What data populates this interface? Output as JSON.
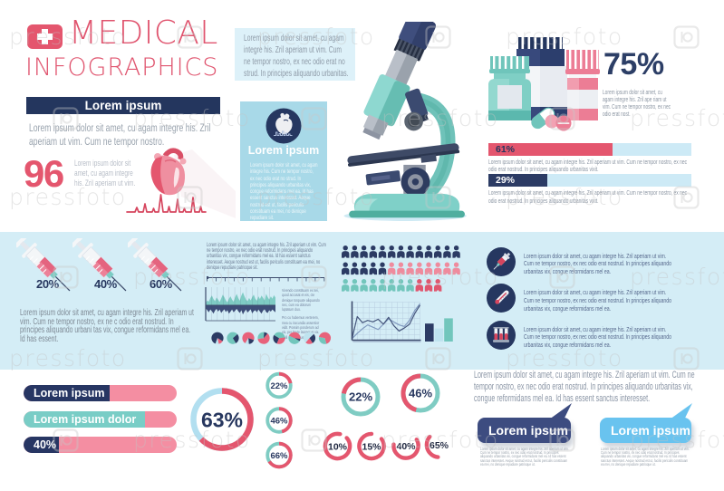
{
  "header": {
    "title_line1": "MEDICAL",
    "title_line2": "INFOGRAPHICS",
    "cross_icon": "medical-cross-icon"
  },
  "top_note": "Lorem ipsum dolor sit amet, cu agam integre his. Zril aperiam ut vim. Cum ne tempor nostro, ex nec odio erat no strud. In principes aliquando urbanitas.",
  "left_panel": {
    "banner_label": "Lorem ipsum",
    "intro": "Lorem ipsum dolor sit amet, cu agam integre his. Zril aperiam ut vim. Cum ne tempor nostro.",
    "stat_value": "96",
    "stat_note": "Lorem ipsum dolor sit amet, cu agam integre his. Zril aperiam ut vim."
  },
  "heart_card": {
    "title": "Lorem ipsum",
    "body": "Lorem ipsum dolor sit amet, cu agam integre his. Cum ne tempor nostro, ex nec odio erat no strud. In principes aliquando urbanitas vix, congue reformidans mel ea. Id has essent sanctus interesset. Aeque nostrud est ut, facilis periculis constituam ea mei, no denique repudiare sit."
  },
  "medicine_stat": {
    "value": "75%",
    "note": "Lorem ipsum dolor sit amet, cu agam integre his. Zril ape riam ut vim. Cum ne tempor nostro, ex nec odio erat nost."
  },
  "syringe_section": {
    "note": "Lorem ipsum dolor sit amet, cu agam integre his. Zril aperiam ut vim. Cum ne tempor nostro, ex ne c odio erat nostrud. In principes aliquando urbani tas vix, congue reformidans mel ea. Id has essent."
  },
  "mid_note": "Lorem ipsum dolor sit amet, cu agam integre his. Zril aperiam ut vim. Cum ne tempor nostro, ex nec odio erat nostrud. In principes aliquando urbanitas vix, congue reformidans mel ea. Id has essent sanctus interesset. Aeque nostrud est ut, facilis periculis constituam ea mei, no denique repudiare patrioque sit.",
  "tiny_caption_1": "Vivendo constituam ex sei, quod accusat et eis, cte denique torquate aliquando nec, cum ea dolorum luptatum duo.",
  "tiny_caption_2": "Pro cu habemus verterem, mea cu iracundia assentior vidit. Possim ponderum ad vix, per brute laoreet et vix. Falli saperet ius ad.",
  "icon_rows": [
    {
      "icon": "syringe-icon",
      "text": "Lorem ipsum dolor sit amet, cu agam integre his. Zril aperiam ut vim. Cum ne tempor nostro, ex nec odio erat nostrud. In principes aliquando urbanitas vix, congue reformidans mel ea."
    },
    {
      "icon": "thermometer-icon",
      "text": "Lorem ipsum dolor sit amet, cu agam integre his. Zril aperiam ut vim. Cum ne tempor nostro, ex nec odio erat nostrud. In principes aliquando urbanitas vix, congue reformidans mel ea."
    },
    {
      "icon": "test-tubes-icon",
      "text": "Lorem ipsum dolor sit amet, cu agam integre his. Zril aperiam ut vim. Cum ne tempor nostro, ex nec odio erat nostrud. In principes aliquando urbanitas vix, congue reformidans mel ea."
    }
  ],
  "bottom_note": "Lorem ipsum dolor sit amet, cu agam integre his. Zril aperiam ut vim. Cum ne tempor nostro, ex nec odio erat nostrud. In principes aliquando urbanitas vix, congue reformidans mel ea. Id has essent sanctus interesset.",
  "speech_bubbles": [
    {
      "label": "Lorem ipsum",
      "color": "#3d4c80",
      "note": "Lorem ipsum dolor sit amet, cu agam integre his. Zril aperiam ut vim. Cum ne tempor nostro, ex nec odio erat nostrud. In principes aliquando urbanitas vix, congue reformidans mel ea. Id has essent sanctus interesset. Aeque nostrud est ut, facilis periculis constituam ea mei, no denique repudiare patrioque ut."
    },
    {
      "label": "Lorem ipsum",
      "color": "#69c3ef",
      "note": "Lorem ipsum dolor sit amet, cu agam integre his. Zril aperiam ut vim. Cum ne tempor nostro, ex nec odio erat nostrud. In principes aliquando urbanitas vix, congue reformidans mel ea. Id has essent sanctus interesset. Aeque nostrud est ut, facilis periculis constituam ea mei, no denique repudiare patrioque ut."
    }
  ],
  "watermark": {
    "text": "pressfoto",
    "logo": "pressfoto-camera-icon"
  },
  "colors": {
    "pink": "#e4566e",
    "pink_light": "#f48ea2",
    "navy": "#24365e",
    "navy_mid": "#2c3b64",
    "teal": "#7bccc4",
    "teal_dark": "#52b2a6",
    "band_blue": "#d4edf6",
    "card_blue": "#a8d9e8",
    "note_box_blue": "#ddf1f9",
    "track_blue": "#cdeaf6",
    "sky": "#69c3ef",
    "gray_text": "#98a2ad"
  },
  "chart_data": [
    {
      "id": "syringe_doses",
      "type": "pictogram",
      "icon": "syringe",
      "categories": [
        "syringe-1",
        "syringe-2",
        "syringe-3"
      ],
      "values": [
        20,
        40,
        60
      ],
      "labels": [
        "20%",
        "40%",
        "60%"
      ],
      "unit": "%"
    },
    {
      "id": "treatment_bars",
      "type": "bar",
      "orientation": "horizontal",
      "max": 100,
      "values": [
        61,
        29
      ],
      "labels": [
        "61%",
        "29%"
      ],
      "bar_colors": [
        "#e4566e",
        "#2c3b64"
      ],
      "label_colors": [
        "#24365e",
        "#ffffff"
      ],
      "track_color": "#cdeaf6",
      "notes": [
        "Lorem ipsum dolor sit amet, cu agam integre his. Zril aperiam ut vim. Cum ne tempor nostro, ex nec odio erat nostrud. In principes aliquando urbanitas vixit.",
        "Lorem ipsum dolor sit amet, cu agam integre his. Zril aperiam ut vim. Cum ne tempor nostro, ex nec odio erat nostrud. In principes aliquando urbanitas vixit."
      ]
    },
    {
      "id": "population_pictogram",
      "type": "pictogram",
      "icon": "person",
      "rows": [
        {
          "groups": [
            {
              "color": "#2c3b64",
              "count": 13
            }
          ]
        },
        {
          "groups": [
            {
              "color": "#2c3b64",
              "count": 5
            },
            {
              "color": "#ef8b9d",
              "count": 8
            }
          ]
        },
        {
          "groups": [
            {
              "color": "#72c6bc",
              "count": 8
            },
            {
              "color": "#e0576f",
              "count": 3
            }
          ]
        }
      ]
    },
    {
      "id": "waveform_area",
      "type": "area",
      "upper_color": "#7fccc4",
      "lower_color": "#3e4e78",
      "upper": [
        12,
        30,
        22,
        45,
        60,
        38,
        25,
        48,
        35,
        20,
        42,
        65,
        50,
        30,
        18,
        40,
        55,
        35,
        22,
        50,
        70,
        45,
        28,
        60,
        80,
        55,
        35,
        25,
        45,
        30,
        50,
        65,
        40,
        28,
        55,
        38,
        60,
        45,
        30,
        70,
        50,
        35,
        55,
        40,
        62,
        48
      ],
      "lower": [
        20,
        35,
        50,
        30,
        42,
        60,
        38,
        25,
        45,
        30,
        55,
        40,
        28,
        48,
        35,
        60,
        45,
        30,
        50,
        38,
        25,
        42,
        55,
        35,
        65,
        45,
        30,
        52,
        40,
        28,
        58,
        42,
        35,
        50,
        30,
        45,
        60,
        38,
        28,
        48,
        55,
        35,
        45,
        30,
        40,
        50
      ]
    },
    {
      "id": "trend_lines",
      "type": "line",
      "grid": true,
      "series": [
        {
          "name": "series-1",
          "color": "#46567c",
          "values": [
            4,
            62,
            46,
            52,
            48,
            55,
            42,
            60,
            38,
            24,
            32,
            42,
            70,
            92
          ]
        },
        {
          "name": "series-2",
          "color": "#8099bf",
          "values": [
            4,
            18,
            30,
            40,
            34,
            28,
            42,
            56,
            48,
            40,
            36,
            52,
            78,
            96
          ]
        }
      ]
    },
    {
      "id": "mini_bars",
      "type": "bar",
      "values": [
        62,
        45,
        80
      ],
      "colors": [
        "#2c3b64",
        "#bfe3ef",
        "#72c6bc"
      ],
      "ylim": [
        0,
        100
      ]
    },
    {
      "id": "mini_pies",
      "type": "pie",
      "pies": [
        {
          "rotate": 200,
          "slices": [
            {
              "color": "#2c3b64",
              "value": 0.78
            },
            {
              "color": "#e8627b",
              "value": 0.13
            },
            {
              "color": "#bfe3ef",
              "value": 0.09
            }
          ]
        },
        {
          "rotate": 150,
          "slices": [
            {
              "color": "#72c6bc",
              "value": 0.72
            },
            {
              "color": "#2c3b64",
              "value": 0.28
            }
          ]
        },
        {
          "rotate": 210,
          "slices": [
            {
              "color": "#e8627b",
              "value": 0.72
            },
            {
              "color": "#2c3b64",
              "value": 0.18
            },
            {
              "color": "#bfe3ef",
              "value": 0.1
            }
          ]
        },
        {
          "rotate": 40,
          "slices": [
            {
              "color": "#e8627b",
              "value": 0.62
            },
            {
              "color": "#72c6bc",
              "value": 0.28
            },
            {
              "color": "#2c3b64",
              "value": 0.1
            }
          ]
        },
        {
          "rotate": 300,
          "slices": [
            {
              "color": "#72c6bc",
              "value": 0.4
            },
            {
              "color": "#e8627b",
              "value": 0.33
            },
            {
              "color": "#2c3b64",
              "value": 0.27
            }
          ]
        },
        {
          "rotate": 120,
          "slices": [
            {
              "color": "#72c6bc",
              "value": 0.48
            },
            {
              "color": "#e8627b",
              "value": 0.46
            },
            {
              "color": "#2c3b64",
              "value": 0.06
            }
          ]
        },
        {
          "rotate": 220,
          "slices": [
            {
              "color": "#bfe3ef",
              "value": 0.52
            },
            {
              "color": "#2c3b64",
              "value": 0.28
            },
            {
              "color": "#e8627b",
              "value": 0.2
            }
          ]
        },
        {
          "rotate": 280,
          "slices": [
            {
              "color": "#e8627b",
              "value": 0.68
            },
            {
              "color": "#72c6bc",
              "value": 0.32
            }
          ]
        }
      ]
    },
    {
      "id": "category_bars",
      "type": "bar",
      "orientation": "horizontal",
      "max": 100,
      "rest_color": "#f48ea2",
      "items": [
        {
          "label": "Lorem ipsum",
          "value": 56,
          "color": "#273663"
        },
        {
          "label": "Lorem ipsum dolor",
          "value": 79,
          "color": "#79cdc6"
        },
        {
          "label": "40%",
          "value": 23,
          "color": "#273663"
        }
      ]
    },
    {
      "id": "donut_main",
      "type": "donut",
      "value": 63,
      "label": "63%",
      "arc_color": "#e4566e",
      "track_color": "#b2dff0",
      "direction": "cw"
    },
    {
      "id": "donut_column",
      "type": "donut",
      "direction": "cw",
      "arc_color": "#e4566e",
      "track_color": "#7fccc3",
      "items": [
        {
          "label": "22%",
          "value": 22
        },
        {
          "label": "46%",
          "value": 46
        },
        {
          "label": "66%",
          "value": 66
        }
      ]
    },
    {
      "id": "donut_medium",
      "type": "donut",
      "direction": "ccw",
      "arc_color": "#e4566e",
      "track_color": "#7fccc3",
      "items": [
        {
          "label": "22%",
          "value": 22
        },
        {
          "label": "46%",
          "value": 46
        }
      ]
    },
    {
      "id": "arc_rings",
      "type": "donut",
      "arc_color": "#e4566e",
      "track_color": "none",
      "items": [
        {
          "label": "10%",
          "value": 10,
          "start": 48,
          "end": 372
        },
        {
          "label": "15%",
          "value": 15,
          "start": 54,
          "end": 360
        },
        {
          "label": "40%",
          "value": 40,
          "start": 60,
          "end": 276
        },
        {
          "label": "65%",
          "value": 65,
          "start": 185,
          "end": 311
        }
      ]
    }
  ]
}
